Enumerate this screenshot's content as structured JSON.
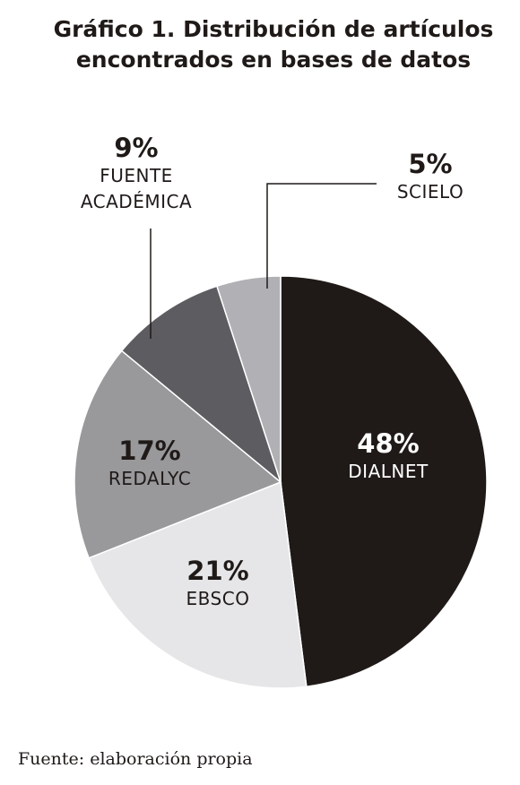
{
  "chart_data": {
    "type": "pie",
    "title": "Gráfico 1. Distribución de artículos encontrados en bases de datos",
    "categories": [
      "DIALNET",
      "EBSCO",
      "REDALYC",
      "FUENTE ACADÉMICA",
      "SCIELO"
    ],
    "values": [
      48,
      21,
      17,
      9,
      5
    ],
    "value_labels": [
      "48%",
      "21%",
      "17%",
      "9%",
      "5%"
    ],
    "colors": [
      "#1f1a18",
      "#e6e6e8",
      "#99989b",
      "#5d5c60",
      "#b1b0b4"
    ],
    "source": "Fuente: elaboración propia"
  }
}
